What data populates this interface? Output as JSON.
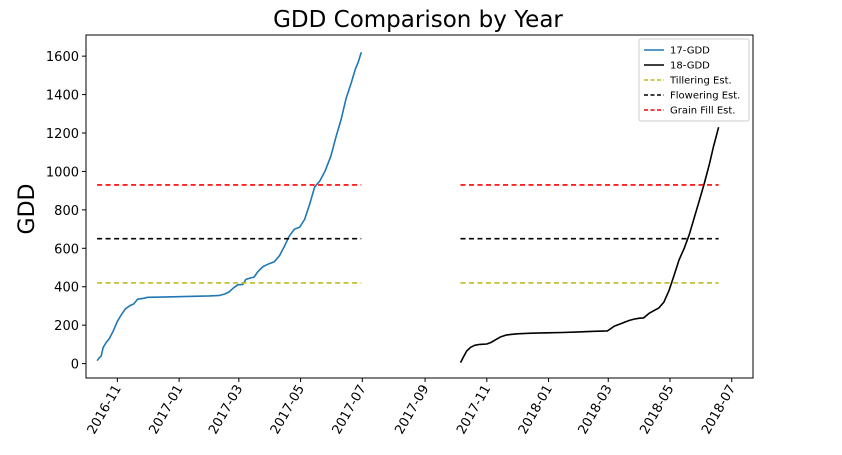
{
  "chart_data": {
    "type": "line",
    "title": "GDD Comparison by Year",
    "xlabel": "",
    "ylabel": "GDD",
    "x_axis_type": "date",
    "xlim": [
      "2016-10-01",
      "2018-07-22"
    ],
    "ylim": [
      -75,
      1710
    ],
    "y_ticks": [
      0,
      200,
      400,
      600,
      800,
      1000,
      1200,
      1400,
      1600
    ],
    "x_ticks": [
      "2016-11-01",
      "2017-01-01",
      "2017-03-01",
      "2017-05-01",
      "2017-07-01",
      "2017-09-01",
      "2017-11-01",
      "2018-01-01",
      "2018-03-01",
      "2018-05-01",
      "2018-07-01"
    ],
    "x_tick_labels": [
      "2016-11",
      "2017-01",
      "2017-03",
      "2017-05",
      "2017-07",
      "2017-09",
      "2017-11",
      "2018-01",
      "2018-03",
      "2018-05",
      "2018-07"
    ],
    "grid": false,
    "legend_position": "top-right",
    "series": [
      {
        "name": "17-GDD",
        "color": "#1f77b4",
        "style": "solid",
        "points": [
          [
            "2016-10-12",
            15
          ],
          [
            "2016-10-14",
            30
          ],
          [
            "2016-10-16",
            40
          ],
          [
            "2016-10-18",
            85
          ],
          [
            "2016-10-21",
            110
          ],
          [
            "2016-10-24",
            130
          ],
          [
            "2016-10-28",
            170
          ],
          [
            "2016-11-01",
            220
          ],
          [
            "2016-11-05",
            255
          ],
          [
            "2016-11-09",
            285
          ],
          [
            "2016-11-13",
            300
          ],
          [
            "2016-11-17",
            310
          ],
          [
            "2016-11-21",
            335
          ],
          [
            "2016-11-27",
            340
          ],
          [
            "2016-12-01",
            345
          ],
          [
            "2016-12-15",
            346
          ],
          [
            "2016-12-31",
            348
          ],
          [
            "2017-01-15",
            350
          ],
          [
            "2017-01-31",
            352
          ],
          [
            "2017-02-10",
            355
          ],
          [
            "2017-02-15",
            362
          ],
          [
            "2017-02-19",
            372
          ],
          [
            "2017-02-24",
            395
          ],
          [
            "2017-02-28",
            410
          ],
          [
            "2017-03-05",
            412
          ],
          [
            "2017-03-08",
            438
          ],
          [
            "2017-03-12",
            445
          ],
          [
            "2017-03-16",
            450
          ],
          [
            "2017-03-20",
            480
          ],
          [
            "2017-03-25",
            505
          ],
          [
            "2017-03-31",
            520
          ],
          [
            "2017-04-05",
            530
          ],
          [
            "2017-04-10",
            560
          ],
          [
            "2017-04-15",
            610
          ],
          [
            "2017-04-20",
            665
          ],
          [
            "2017-04-25",
            700
          ],
          [
            "2017-04-30",
            710
          ],
          [
            "2017-05-05",
            750
          ],
          [
            "2017-05-10",
            830
          ],
          [
            "2017-05-15",
            920
          ],
          [
            "2017-05-20",
            950
          ],
          [
            "2017-05-25",
            1000
          ],
          [
            "2017-05-31",
            1080
          ],
          [
            "2017-06-05",
            1180
          ],
          [
            "2017-06-10",
            1270
          ],
          [
            "2017-06-15",
            1380
          ],
          [
            "2017-06-20",
            1460
          ],
          [
            "2017-06-24",
            1530
          ],
          [
            "2017-06-27",
            1570
          ],
          [
            "2017-06-30",
            1620
          ]
        ]
      },
      {
        "name": "18-GDD",
        "color": "#000000",
        "style": "solid",
        "points": [
          [
            "2017-10-06",
            5
          ],
          [
            "2017-10-09",
            35
          ],
          [
            "2017-10-12",
            65
          ],
          [
            "2017-10-16",
            85
          ],
          [
            "2017-10-20",
            95
          ],
          [
            "2017-10-25",
            100
          ],
          [
            "2017-11-01",
            102
          ],
          [
            "2017-11-05",
            110
          ],
          [
            "2017-11-10",
            125
          ],
          [
            "2017-11-15",
            140
          ],
          [
            "2017-11-20",
            148
          ],
          [
            "2017-11-25",
            152
          ],
          [
            "2017-12-01",
            155
          ],
          [
            "2017-12-15",
            158
          ],
          [
            "2017-12-31",
            160
          ],
          [
            "2018-01-15",
            162
          ],
          [
            "2018-01-31",
            165
          ],
          [
            "2018-02-15",
            168
          ],
          [
            "2018-02-28",
            170
          ],
          [
            "2018-03-03",
            180
          ],
          [
            "2018-03-07",
            195
          ],
          [
            "2018-03-12",
            205
          ],
          [
            "2018-03-17",
            215
          ],
          [
            "2018-03-22",
            225
          ],
          [
            "2018-03-27",
            232
          ],
          [
            "2018-04-01",
            236
          ],
          [
            "2018-04-05",
            238
          ],
          [
            "2018-04-10",
            260
          ],
          [
            "2018-04-15",
            275
          ],
          [
            "2018-04-20",
            290
          ],
          [
            "2018-04-25",
            320
          ],
          [
            "2018-04-30",
            380
          ],
          [
            "2018-05-05",
            460
          ],
          [
            "2018-05-10",
            540
          ],
          [
            "2018-05-15",
            600
          ],
          [
            "2018-05-20",
            670
          ],
          [
            "2018-05-25",
            760
          ],
          [
            "2018-05-30",
            850
          ],
          [
            "2018-06-04",
            940
          ],
          [
            "2018-06-09",
            1040
          ],
          [
            "2018-06-13",
            1130
          ],
          [
            "2018-06-16",
            1190
          ],
          [
            "2018-06-18",
            1230
          ]
        ]
      },
      {
        "name": "Tillering Est.",
        "color": "#bcbd22",
        "style": "dashed",
        "segments": [
          [
            [
              "2016-10-12",
              420
            ],
            [
              "2017-06-30",
              420
            ]
          ],
          [
            [
              "2017-10-06",
              420
            ],
            [
              "2018-06-18",
              420
            ]
          ]
        ]
      },
      {
        "name": "Flowering Est.",
        "color": "#000000",
        "style": "dashed",
        "segments": [
          [
            [
              "2016-10-12",
              650
            ],
            [
              "2017-06-30",
              650
            ]
          ],
          [
            [
              "2017-10-06",
              650
            ],
            [
              "2018-06-18",
              650
            ]
          ]
        ]
      },
      {
        "name": "Grain Fill Est.",
        "color": "#ff0000",
        "style": "dashed",
        "segments": [
          [
            [
              "2016-10-12",
              930
            ],
            [
              "2017-06-30",
              930
            ]
          ],
          [
            [
              "2017-10-06",
              930
            ],
            [
              "2018-06-18",
              930
            ]
          ]
        ]
      }
    ]
  }
}
